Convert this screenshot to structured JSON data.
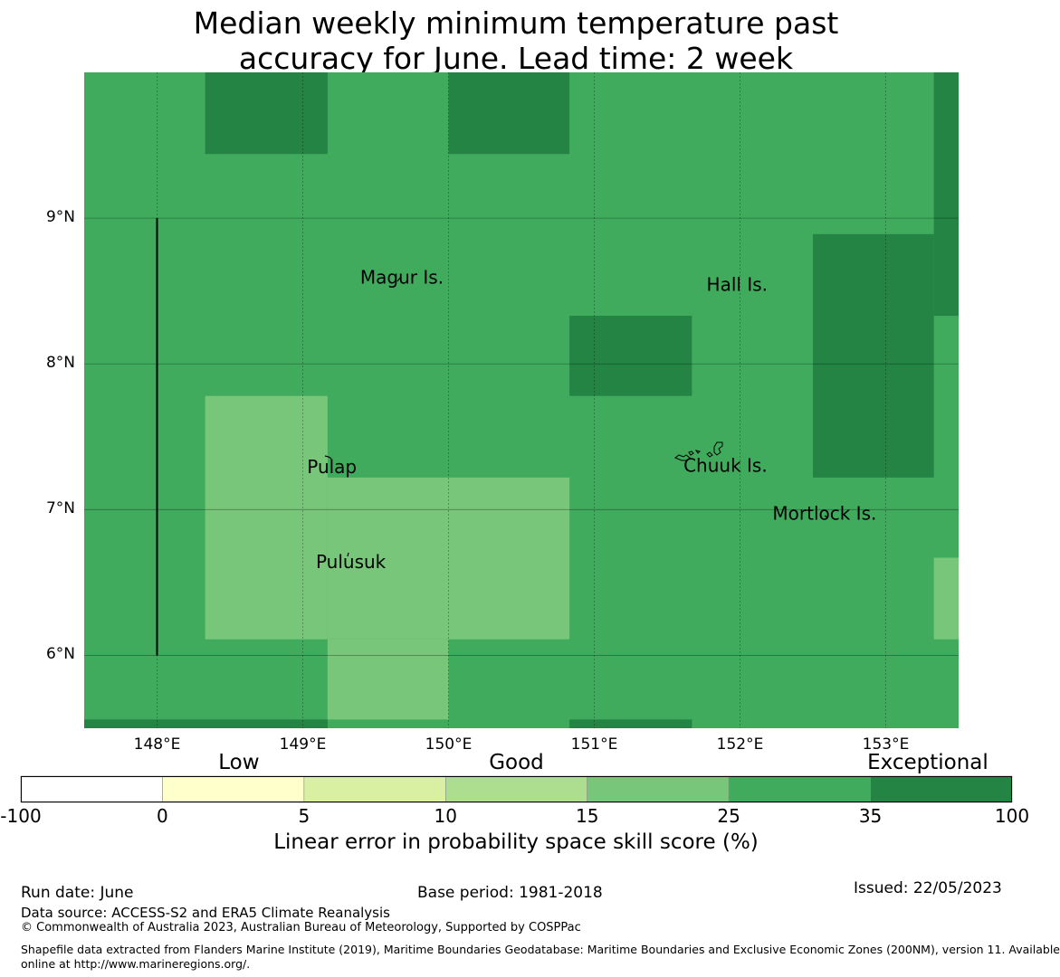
{
  "title": {
    "line1": "Median weekly minimum temperature past",
    "line2": "accuracy for June. Lead time: 2 week"
  },
  "map": {
    "lon_range": [
      147.5,
      153.5
    ],
    "lat_range": [
      5.5,
      10.0
    ],
    "lon_ticks": [
      {
        "value": 148,
        "label": "148°E"
      },
      {
        "value": 149,
        "label": "149°E"
      },
      {
        "value": 150,
        "label": "150°E"
      },
      {
        "value": 151,
        "label": "151°E"
      },
      {
        "value": 152,
        "label": "152°E"
      },
      {
        "value": 153,
        "label": "153°E"
      }
    ],
    "lat_ticks": [
      {
        "value": 6,
        "label": "6°N"
      },
      {
        "value": 7,
        "label": "7°N"
      },
      {
        "value": 8,
        "label": "8°N"
      },
      {
        "value": 9,
        "label": "9°N"
      }
    ],
    "grid": true,
    "background_color": "#41ab5d",
    "cells": [
      {
        "lon": [
          148.33,
          149.17
        ],
        "lat": [
          9.44,
          10.0
        ],
        "category": "exceptional"
      },
      {
        "lon": [
          150.0,
          150.83
        ],
        "lat": [
          9.44,
          10.0
        ],
        "category": "exceptional"
      },
      {
        "lon": [
          153.33,
          153.5
        ],
        "lat": [
          8.33,
          10.0
        ],
        "category": "exceptional"
      },
      {
        "lon": [
          152.5,
          153.33
        ],
        "lat": [
          7.22,
          8.89
        ],
        "category": "exceptional"
      },
      {
        "lon": [
          150.83,
          151.67
        ],
        "lat": [
          7.78,
          8.33
        ],
        "category": "exceptional"
      },
      {
        "lon": [
          148.33,
          149.17
        ],
        "lat": [
          6.11,
          7.78
        ],
        "category": "good"
      },
      {
        "lon": [
          149.17,
          150.83
        ],
        "lat": [
          6.11,
          7.22
        ],
        "category": "good"
      },
      {
        "lon": [
          149.17,
          150.0
        ],
        "lat": [
          5.56,
          6.11
        ],
        "category": "good"
      },
      {
        "lon": [
          153.33,
          153.5
        ],
        "lat": [
          6.11,
          6.67
        ],
        "category": "good"
      },
      {
        "lon": [
          147.5,
          149.17
        ],
        "lat": [
          5.5,
          5.56
        ],
        "category": "exceptional"
      },
      {
        "lon": [
          150.83,
          151.67
        ],
        "lat": [
          5.5,
          5.56
        ],
        "category": "exceptional"
      }
    ],
    "category_colors": {
      "good": "#78c679",
      "exceptional": "#238443"
    },
    "boundary_line": {
      "lon": 148.0,
      "lat": [
        6.0,
        9.0
      ]
    },
    "places": [
      {
        "name": "Magur Is.",
        "lon": 149.68,
        "lat": 8.55
      },
      {
        "name": "Hall Is.",
        "lon": 151.98,
        "lat": 8.5
      },
      {
        "name": "Pulap",
        "lon": 149.2,
        "lat": 7.25
      },
      {
        "name": "Chuuk Is.",
        "lon": 151.9,
        "lat": 7.26
      },
      {
        "name": "Mortlock Is.",
        "lon": 152.58,
        "lat": 6.93
      },
      {
        "name": "Pulusuk",
        "lon": 149.33,
        "lat": 6.6
      }
    ]
  },
  "colorbar": {
    "categories": [
      {
        "label": "Low",
        "position": 0.22
      },
      {
        "label": "Good",
        "position": 0.5
      },
      {
        "label": "Exceptional",
        "position": 0.915
      }
    ],
    "bins": [
      {
        "color": "#ffffff"
      },
      {
        "color": "#ffffcc"
      },
      {
        "color": "#d9f0a3"
      },
      {
        "color": "#addd8e"
      },
      {
        "color": "#78c679"
      },
      {
        "color": "#41ab5d"
      },
      {
        "color": "#238443"
      }
    ],
    "ticks": [
      "-100",
      "0",
      "5",
      "10",
      "15",
      "25",
      "35",
      "100"
    ],
    "label": "Linear error in probability space skill score (%)"
  },
  "footer": {
    "run_date": "Run date: June",
    "base_period": "Base period: 1981-2018",
    "issued": "Issued: 22/05/2023",
    "data_source": "Data source: ACCESS-S2 and ERA5 Climate Reanalysis",
    "copyright": "© Commonwealth of Australia 2023, Australian Bureau of Meteorology, Supported by COSPPac",
    "shapefile_line1": "Shapefile data extracted from Flanders Marine Institute (2019), Maritime Boundaries Geodatabase: Maritime Boundaries and Exclusive Economic Zones (200NM), version 11. Available",
    "shapefile_line2": "online at http://www.marineregions.org/."
  }
}
